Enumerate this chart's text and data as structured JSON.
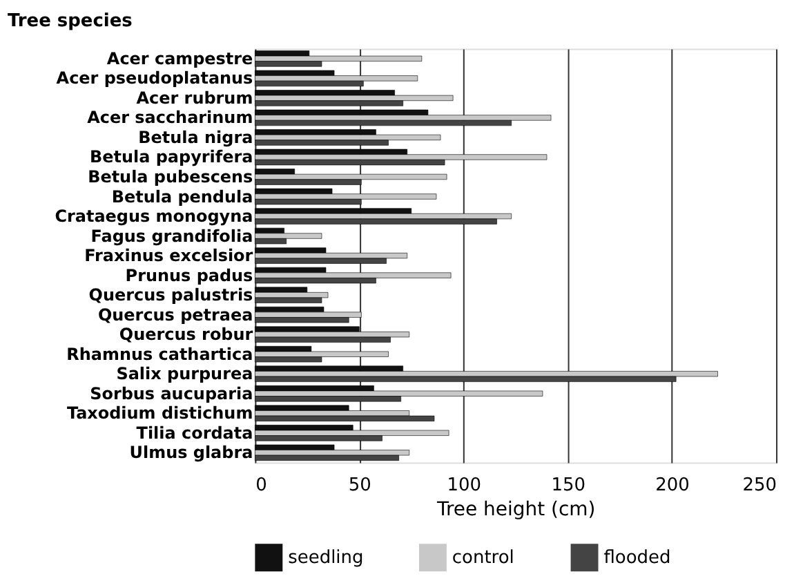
{
  "chart_data": {
    "type": "bar",
    "orientation": "horizontal",
    "ylabel": "Tree species",
    "xlabel": "Tree height (cm)",
    "categories": [
      "Acer campestre",
      "Acer pseudoplatanus",
      "Acer rubrum",
      "Acer saccharinum",
      "Betula nigra",
      "Betula papyrifera",
      "Betula pubescens",
      "Betula pendula",
      "Crataegus monogyna",
      "Fagus grandifolia",
      "Fraxinus excelsior",
      "Prunus padus",
      "Quercus palustris",
      "Quercus petraea",
      "Quercus robur",
      "Rhamnus cathartica",
      "Salix purpurea",
      "Sorbus aucuparia",
      "Taxodium distichum",
      "Tilia cordata",
      "Ulmus glabra"
    ],
    "series": [
      {
        "name": "seedling",
        "color": "#111111",
        "values": [
          26,
          38,
          67,
          83,
          58,
          73,
          19,
          37,
          75,
          14,
          34,
          34,
          25,
          33,
          50,
          27,
          71,
          57,
          45,
          47,
          38
        ]
      },
      {
        "name": "control",
        "color": "#c8c8c8",
        "values": [
          80,
          78,
          95,
          142,
          89,
          140,
          92,
          87,
          123,
          32,
          73,
          94,
          35,
          51,
          74,
          64,
          222,
          138,
          74,
          93,
          74
        ]
      },
      {
        "name": "flooded",
        "color": "#444444",
        "values": [
          32,
          52,
          71,
          123,
          64,
          91,
          51,
          51,
          116,
          15,
          63,
          58,
          32,
          45,
          65,
          32,
          202,
          70,
          86,
          61,
          69
        ]
      }
    ],
    "xlim": [
      0,
      250
    ],
    "xticks": [
      0,
      50,
      100,
      150,
      200,
      250
    ],
    "grid": "x",
    "legend": "bottom"
  }
}
